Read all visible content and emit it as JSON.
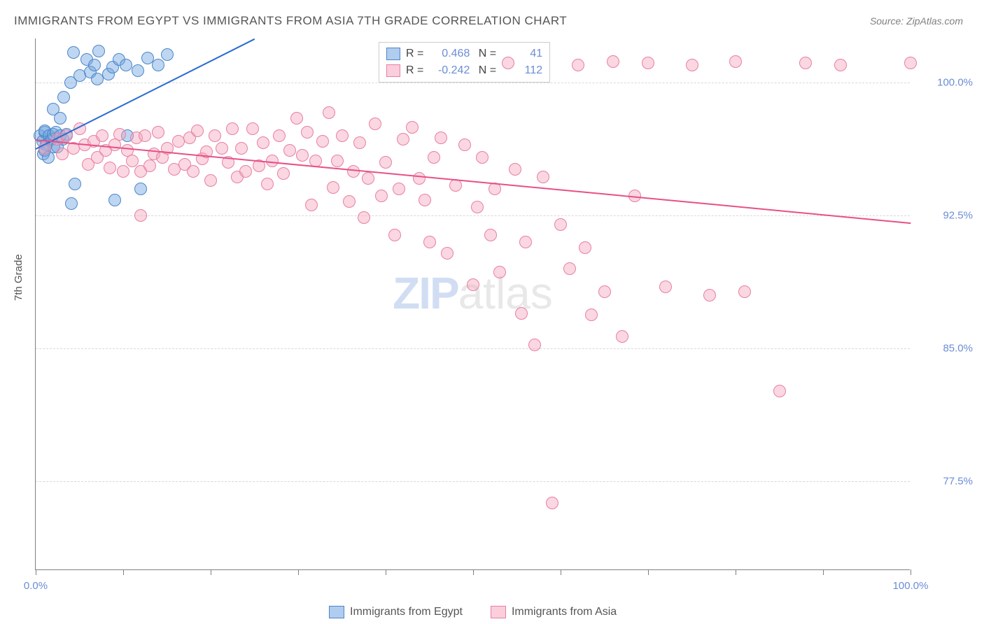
{
  "title": "IMMIGRANTS FROM EGYPT VS IMMIGRANTS FROM ASIA 7TH GRADE CORRELATION CHART",
  "source": "Source: ZipAtlas.com",
  "y_axis_label": "7th Grade",
  "watermark": {
    "part1": "ZIP",
    "part2": "atlas"
  },
  "chart": {
    "type": "scatter",
    "background_color": "#ffffff",
    "grid_color": "#d8d8d8",
    "axis_color": "#808080",
    "xlim": [
      0,
      100
    ],
    "ylim": [
      72.5,
      102.5
    ],
    "x_ticks": [
      0,
      10,
      20,
      30,
      40,
      50,
      60,
      70,
      80,
      90,
      100
    ],
    "x_tick_labels": {
      "0": "0.0%",
      "100": "100.0%"
    },
    "y_ticks": [
      77.5,
      85.0,
      92.5,
      100.0
    ],
    "y_tick_labels": [
      "77.5%",
      "85.0%",
      "92.5%",
      "100.0%"
    ],
    "marker_radius": 9,
    "marker_opacity": 0.55,
    "series": [
      {
        "name": "Immigrants from Egypt",
        "color": "#6fa3e0",
        "border_color": "#4c86c8",
        "fill_color": "rgba(111,163,224,0.45)",
        "R": "0.468",
        "N": "41",
        "regression": {
          "x1": 0,
          "y1": 96.3,
          "x2": 25,
          "y2": 102.5,
          "color": "#2a6bd4",
          "width": 2
        },
        "points": [
          [
            0.5,
            97.0
          ],
          [
            0.8,
            96.7
          ],
          [
            1.0,
            97.2
          ],
          [
            0.9,
            96.0
          ],
          [
            1.2,
            96.5
          ],
          [
            1.0,
            97.3
          ],
          [
            1.5,
            97.0
          ],
          [
            1.8,
            96.8
          ],
          [
            2.0,
            97.1
          ],
          [
            1.0,
            96.2
          ],
          [
            1.4,
            95.8
          ],
          [
            2.1,
            96.4
          ],
          [
            2.3,
            97.2
          ],
          [
            2.0,
            98.5
          ],
          [
            2.8,
            97.0
          ],
          [
            2.5,
            96.4
          ],
          [
            3.1,
            96.8
          ],
          [
            3.5,
            97.1
          ],
          [
            2.8,
            98.0
          ],
          [
            3.2,
            99.2
          ],
          [
            4.0,
            100.0
          ],
          [
            4.3,
            101.7
          ],
          [
            5.0,
            100.4
          ],
          [
            5.8,
            101.3
          ],
          [
            6.2,
            100.6
          ],
          [
            6.7,
            101.0
          ],
          [
            7.2,
            101.8
          ],
          [
            7.0,
            100.2
          ],
          [
            8.3,
            100.5
          ],
          [
            8.8,
            100.9
          ],
          [
            9.5,
            101.3
          ],
          [
            10.3,
            101.0
          ],
          [
            11.7,
            100.7
          ],
          [
            12.8,
            101.4
          ],
          [
            14.0,
            101.0
          ],
          [
            15.0,
            101.6
          ],
          [
            4.5,
            94.3
          ],
          [
            4.1,
            93.2
          ],
          [
            9.0,
            93.4
          ],
          [
            10.5,
            97.0
          ],
          [
            12.0,
            94.0
          ]
        ]
      },
      {
        "name": "Immigrants from Asia",
        "color": "#f5a6bd",
        "border_color": "#e87fa3",
        "fill_color": "rgba(245,166,189,0.45)",
        "R": "-0.242",
        "N": "112",
        "regression": {
          "x1": 0,
          "y1": 96.8,
          "x2": 100,
          "y2": 92.1,
          "color": "#e94f86",
          "width": 2
        },
        "points": [
          [
            1.0,
            96.3
          ],
          [
            2.5,
            96.8
          ],
          [
            3.0,
            96.0
          ],
          [
            3.5,
            97.0
          ],
          [
            4.3,
            96.3
          ],
          [
            5.0,
            97.4
          ],
          [
            5.6,
            96.5
          ],
          [
            6.0,
            95.4
          ],
          [
            6.6,
            96.7
          ],
          [
            7.0,
            95.8
          ],
          [
            7.6,
            97.0
          ],
          [
            8.0,
            96.2
          ],
          [
            8.5,
            95.2
          ],
          [
            9.0,
            96.5
          ],
          [
            9.6,
            97.1
          ],
          [
            10.0,
            95.0
          ],
          [
            10.5,
            96.2
          ],
          [
            11.0,
            95.6
          ],
          [
            11.5,
            96.9
          ],
          [
            12.0,
            95.0
          ],
          [
            12.5,
            97.0
          ],
          [
            13.0,
            95.3
          ],
          [
            13.5,
            96.0
          ],
          [
            14.0,
            97.2
          ],
          [
            14.5,
            95.8
          ],
          [
            15.0,
            96.3
          ],
          [
            15.8,
            95.1
          ],
          [
            16.3,
            96.7
          ],
          [
            17.0,
            95.4
          ],
          [
            17.6,
            96.9
          ],
          [
            18.0,
            95.0
          ],
          [
            18.5,
            97.3
          ],
          [
            19.0,
            95.7
          ],
          [
            19.5,
            96.1
          ],
          [
            20.0,
            94.5
          ],
          [
            20.5,
            97.0
          ],
          [
            21.3,
            96.3
          ],
          [
            22.0,
            95.5
          ],
          [
            22.5,
            97.4
          ],
          [
            23.0,
            94.7
          ],
          [
            23.5,
            96.3
          ],
          [
            24.0,
            95.0
          ],
          [
            24.8,
            97.4
          ],
          [
            25.5,
            95.3
          ],
          [
            26.0,
            96.6
          ],
          [
            26.5,
            94.3
          ],
          [
            27.0,
            95.6
          ],
          [
            27.8,
            97.0
          ],
          [
            28.3,
            94.9
          ],
          [
            29.0,
            96.2
          ],
          [
            29.8,
            98.0
          ],
          [
            30.5,
            95.9
          ],
          [
            31.0,
            97.2
          ],
          [
            31.5,
            93.1
          ],
          [
            32.0,
            95.6
          ],
          [
            32.8,
            96.7
          ],
          [
            33.5,
            98.3
          ],
          [
            34.0,
            94.1
          ],
          [
            34.5,
            95.6
          ],
          [
            35.0,
            97.0
          ],
          [
            35.8,
            93.3
          ],
          [
            36.3,
            95.0
          ],
          [
            37.0,
            96.6
          ],
          [
            37.5,
            92.4
          ],
          [
            38.0,
            94.6
          ],
          [
            38.8,
            97.7
          ],
          [
            39.5,
            93.6
          ],
          [
            40.0,
            95.5
          ],
          [
            41.0,
            91.4
          ],
          [
            41.5,
            94.0
          ],
          [
            42.0,
            96.8
          ],
          [
            43.0,
            97.5
          ],
          [
            43.8,
            94.6
          ],
          [
            44.5,
            93.4
          ],
          [
            45.0,
            91.0
          ],
          [
            45.5,
            95.8
          ],
          [
            46.3,
            96.9
          ],
          [
            47.0,
            90.4
          ],
          [
            48.0,
            94.2
          ],
          [
            49.0,
            96.5
          ],
          [
            50.0,
            88.6
          ],
          [
            50.5,
            93.0
          ],
          [
            51.0,
            95.8
          ],
          [
            52.0,
            91.4
          ],
          [
            52.5,
            94.0
          ],
          [
            53.0,
            89.3
          ],
          [
            54.0,
            101.1
          ],
          [
            54.8,
            95.1
          ],
          [
            55.5,
            87.0
          ],
          [
            56.0,
            91.0
          ],
          [
            57.0,
            85.2
          ],
          [
            58.0,
            94.7
          ],
          [
            59.0,
            76.3
          ],
          [
            60.0,
            92.0
          ],
          [
            61.0,
            89.5
          ],
          [
            62.0,
            101.0
          ],
          [
            62.8,
            90.7
          ],
          [
            63.5,
            86.9
          ],
          [
            65.0,
            88.2
          ],
          [
            66.0,
            101.2
          ],
          [
            67.0,
            85.7
          ],
          [
            68.5,
            93.6
          ],
          [
            70.0,
            101.1
          ],
          [
            72.0,
            88.5
          ],
          [
            75.0,
            101.0
          ],
          [
            77.0,
            88.0
          ],
          [
            80.0,
            101.2
          ],
          [
            81.0,
            88.2
          ],
          [
            85.0,
            82.6
          ],
          [
            88.0,
            101.1
          ],
          [
            92.0,
            101.0
          ],
          [
            100.0,
            101.1
          ],
          [
            12.0,
            92.5
          ]
        ]
      }
    ]
  },
  "legend": [
    {
      "label": "Immigrants from Egypt",
      "fill": "rgba(111,163,224,0.55)",
      "border": "#4c86c8"
    },
    {
      "label": "Immigrants from Asia",
      "fill": "rgba(245,166,189,0.55)",
      "border": "#e87fa3"
    }
  ]
}
